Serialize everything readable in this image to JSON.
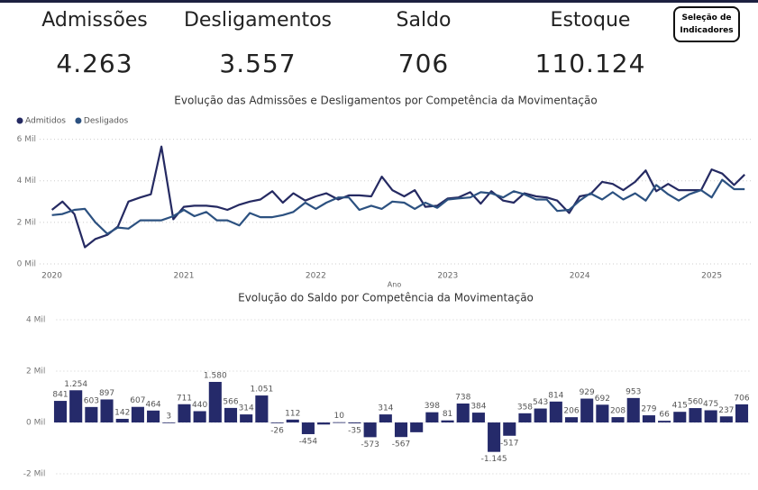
{
  "kpis": [
    {
      "label": "Admissões",
      "value": "4.263"
    },
    {
      "label": "Desligamentos",
      "value": "3.557"
    },
    {
      "label": "Saldo",
      "value": "706"
    },
    {
      "label": "Estoque",
      "value": "110.124"
    }
  ],
  "button": "Seleção de Indicadores",
  "chart_data": [
    {
      "type": "line",
      "title": "Evolução das Admissões e Desligamentos por Competência da Movimentação",
      "x_label": "Ano",
      "legend": "top-left",
      "grid": true,
      "x": [
        2020,
        2020.08,
        2020.17,
        2020.25,
        2020.33,
        2020.42,
        2020.5,
        2020.58,
        2020.67,
        2020.75,
        2020.83,
        2020.92,
        2021,
        2021.08,
        2021.17,
        2021.25,
        2021.33,
        2021.42,
        2021.5,
        2021.58,
        2021.67,
        2021.75,
        2021.83,
        2021.92,
        2022,
        2022.08,
        2022.17,
        2022.25,
        2022.33,
        2022.42,
        2022.5,
        2022.58,
        2022.67,
        2022.75,
        2022.83,
        2022.92,
        2023,
        2023.08,
        2023.17,
        2023.25,
        2023.33,
        2023.42,
        2023.5,
        2023.58,
        2023.67,
        2023.75,
        2023.83,
        2023.92,
        2024,
        2024.08,
        2024.17,
        2024.25,
        2024.33,
        2024.42,
        2024.5,
        2024.58,
        2024.67,
        2024.75,
        2024.83,
        2024.92,
        2025,
        2025.08,
        2025.17,
        2025.25
      ],
      "xlim": [
        2019.88,
        2025.31
      ],
      "xticks": [
        2020,
        2021,
        2022,
        2023,
        2024,
        2025
      ],
      "ylim": [
        0,
        6200
      ],
      "yticks": [
        {
          "value": 0,
          "label": "0 Mil"
        },
        {
          "value": 2000,
          "label": "2 Mil"
        },
        {
          "value": 4000,
          "label": "4 Mil"
        },
        {
          "value": 6000,
          "label": "6 Mil"
        }
      ],
      "series": [
        {
          "name": "Admitidos",
          "color": "#252a62",
          "values": [
            2600,
            3000,
            2400,
            800,
            1200,
            1400,
            1800,
            3000,
            3200,
            3350,
            5650,
            2150,
            2750,
            2800,
            2800,
            2750,
            2600,
            2850,
            3000,
            3100,
            3500,
            2950,
            3400,
            3050,
            3250,
            3400,
            3100,
            3300,
            3300,
            3250,
            4200,
            3550,
            3250,
            3550,
            2750,
            2800,
            3150,
            3200,
            3450,
            2900,
            3500,
            3050,
            2950,
            3400,
            3250,
            3200,
            3050,
            2450,
            3250,
            3350,
            3950,
            3850,
            3550,
            3950,
            4500,
            3500,
            3850,
            3550,
            3550,
            3550,
            4550,
            4350,
            3800,
            4300
          ]
        },
        {
          "name": "Desligados",
          "color": "#2c5180",
          "values": [
            2350,
            2400,
            2600,
            2650,
            2000,
            1450,
            1750,
            1700,
            2100,
            2100,
            2100,
            2300,
            2600,
            2300,
            2500,
            2100,
            2100,
            1850,
            2450,
            2250,
            2250,
            2350,
            2500,
            2950,
            2650,
            2950,
            3200,
            3200,
            2600,
            2800,
            2650,
            3000,
            2950,
            2650,
            2950,
            2700,
            3100,
            3150,
            3200,
            3450,
            3400,
            3200,
            3500,
            3350,
            3100,
            3100,
            2550,
            2600,
            3050,
            3400,
            3100,
            3450,
            3100,
            3400,
            3050,
            3800,
            3350,
            3050,
            3350,
            3550,
            3200,
            4050,
            3600,
            3600
          ]
        }
      ]
    },
    {
      "type": "bar",
      "title": "Evolução do Saldo por Competência da Movimentação",
      "color": "#252a6a",
      "grid": true,
      "ylim": [
        -2100,
        4200
      ],
      "yticks": [
        {
          "value": -2000,
          "label": "-2 Mil"
        },
        {
          "value": 0,
          "label": "0 Mil"
        },
        {
          "value": 2000,
          "label": "2 Mil"
        },
        {
          "value": 4000,
          "label": "4 Mil"
        }
      ],
      "values": [
        841,
        1254,
        603,
        897,
        142,
        607,
        464,
        3,
        711,
        440,
        1580,
        566,
        314,
        1051,
        -26,
        112,
        -454,
        -80,
        10,
        -35,
        -573,
        314,
        -567,
        -380,
        398,
        81,
        738,
        384,
        -1145,
        -517,
        358,
        543,
        814,
        206,
        929,
        692,
        208,
        953,
        279,
        66,
        415,
        560,
        475,
        237,
        706
      ],
      "value_labels": [
        "841",
        "1.254",
        "603",
        "897",
        "142",
        "607",
        "464",
        "3",
        "711",
        "440",
        "1.580",
        "566",
        "314",
        "1.051",
        "-26",
        "112",
        "-454",
        null,
        "10",
        "-35",
        "-573",
        "314",
        "-567",
        null,
        "398",
        "81",
        "738",
        "384",
        "-1.145",
        "-517",
        "358",
        "543",
        "814",
        "206",
        "929",
        "692",
        "208",
        "953",
        "279",
        "66",
        "415",
        "560",
        "475",
        "237",
        "706"
      ]
    }
  ]
}
